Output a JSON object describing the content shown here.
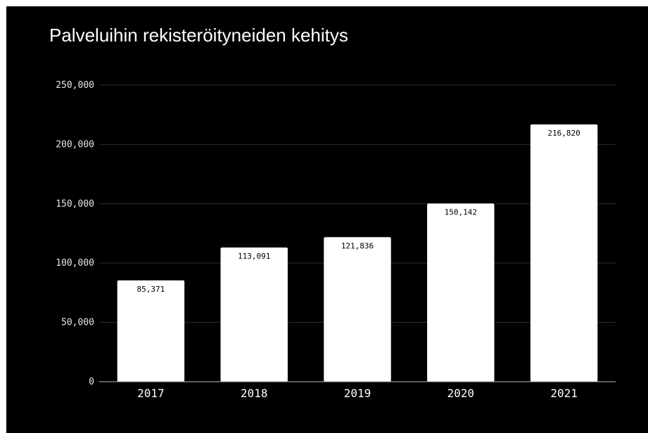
{
  "colors": {
    "background": "#000000",
    "bar": "#ffffff",
    "gridline": "#2e2e2e",
    "text": "#ffffff",
    "data_label": "#000000"
  },
  "chart_data": {
    "type": "bar",
    "title": "Palveluihin rekisteröityneiden kehitys",
    "xlabel": "",
    "ylabel": "",
    "categories": [
      "2017",
      "2018",
      "2019",
      "2020",
      "2021"
    ],
    "values": [
      85371,
      113091,
      121836,
      150142,
      216820
    ],
    "value_labels": [
      "85,371",
      "113,091",
      "121,836",
      "150,142",
      "216,820"
    ],
    "ylim": [
      0,
      250000
    ],
    "yticks": [
      0,
      50000,
      100000,
      150000,
      200000,
      250000
    ],
    "ytick_labels": [
      "0",
      "50,000",
      "100,000",
      "150,000",
      "200,000",
      "250,000"
    ],
    "grid": true,
    "legend": "none"
  }
}
